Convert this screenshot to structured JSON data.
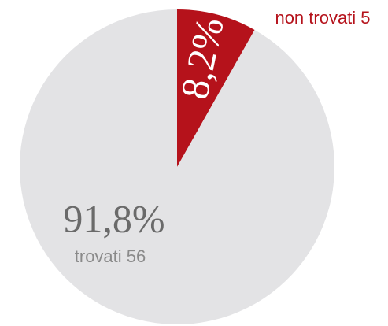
{
  "chart_data": {
    "type": "pie",
    "categories": [
      "non trovati 5",
      "trovati 56"
    ],
    "values": [
      8.2,
      91.8
    ],
    "value_labels": [
      "8,2%",
      "91,8%"
    ],
    "colors": [
      "#b5121b",
      "#e3e3e5"
    ]
  }
}
